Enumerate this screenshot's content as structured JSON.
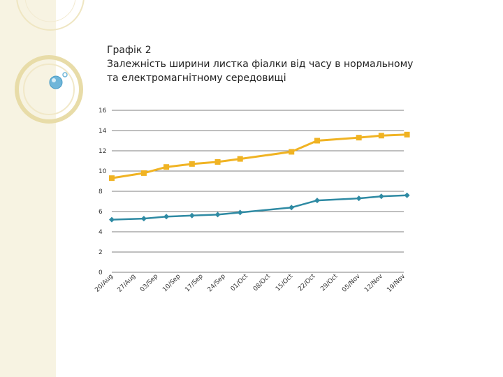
{
  "slide": {
    "title_line1": "Графік 2",
    "title_line2": "Залежність ширини листка фіалки від часу в нормальному",
    "title_line3": "та електромагнітному середовищі"
  },
  "colors": {
    "series_orange": "#f0b323",
    "series_teal": "#2e8aa3",
    "grid": "#7f7f7f",
    "decor_ring": "#e8dca8",
    "decor_bubble": "#6fb6d9"
  },
  "chart_data": {
    "type": "line",
    "title": "",
    "xlabel": "",
    "ylabel": "",
    "categories": [
      "20/Aug",
      "27/Aug",
      "03/Sep",
      "10/Sep",
      "17/Sep",
      "24/Sep",
      "01/Oct",
      "08/Oct",
      "15/Oct",
      "22/Oct",
      "29/Oct",
      "05/Nov",
      "12/Nov",
      "19/Nov"
    ],
    "ylim": [
      0,
      16
    ],
    "yticks": [
      "0",
      "2",
      "4",
      "6",
      "8",
      "10",
      "12",
      "14",
      "16"
    ],
    "grid": true,
    "legend": "none",
    "series": [
      {
        "marker": "square",
        "color": "#f0b323",
        "points": [
          {
            "x": "20/Aug",
            "y": 9.3
          },
          {
            "x": "30/Aug",
            "y": 9.8
          },
          {
            "x": "06/Sep",
            "y": 10.4
          },
          {
            "x": "14/Sep",
            "y": 10.7
          },
          {
            "x": "22/Sep",
            "y": 10.9
          },
          {
            "x": "29/Sep",
            "y": 11.2
          },
          {
            "x": "15/Oct",
            "y": 11.9
          },
          {
            "x": "23/Oct",
            "y": 13.0
          },
          {
            "x": "05/Nov",
            "y": 13.3
          },
          {
            "x": "12/Nov",
            "y": 13.5
          },
          {
            "x": "20/Nov",
            "y": 13.6
          }
        ]
      },
      {
        "marker": "diamond",
        "color": "#2e8aa3",
        "points": [
          {
            "x": "20/Aug",
            "y": 5.2
          },
          {
            "x": "30/Aug",
            "y": 5.3
          },
          {
            "x": "06/Sep",
            "y": 5.5
          },
          {
            "x": "14/Sep",
            "y": 5.6
          },
          {
            "x": "22/Sep",
            "y": 5.7
          },
          {
            "x": "29/Sep",
            "y": 5.9
          },
          {
            "x": "15/Oct",
            "y": 6.4
          },
          {
            "x": "23/Oct",
            "y": 7.1
          },
          {
            "x": "05/Nov",
            "y": 7.3
          },
          {
            "x": "12/Nov",
            "y": 7.5
          },
          {
            "x": "20/Nov",
            "y": 7.6
          }
        ]
      }
    ]
  }
}
